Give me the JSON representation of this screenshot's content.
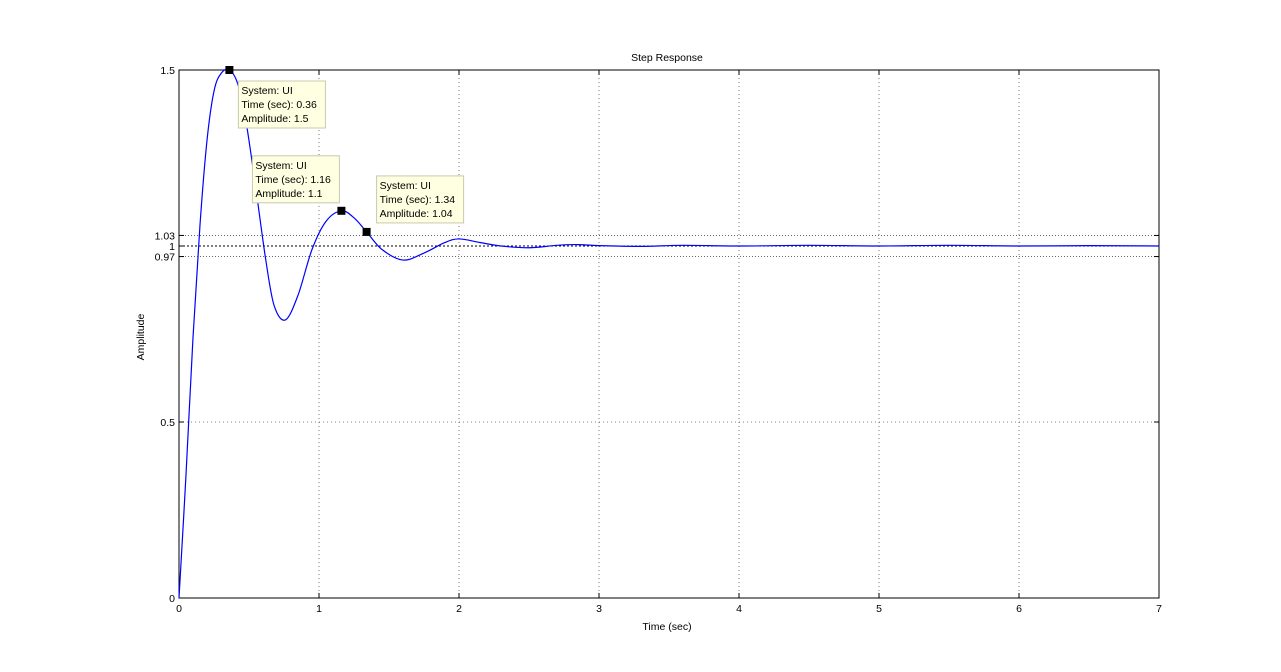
{
  "chart_data": {
    "type": "line",
    "title": "Step Response",
    "xlabel": "Time (sec)",
    "ylabel": "Amplitude",
    "xlim": [
      0,
      7
    ],
    "ylim": [
      0,
      1.5
    ],
    "xticks": [
      "0",
      "1",
      "2",
      "3",
      "4",
      "5",
      "6",
      "7"
    ],
    "yticks": [
      "0",
      "0.5",
      "0.97",
      "1",
      "1.03",
      "1.5"
    ],
    "grid": true,
    "line_color": "#0000ff",
    "settling_bounds": [
      0.97,
      1.03
    ],
    "steady_state": 1,
    "series": [
      {
        "x": [
          0,
          0.05,
          0.1,
          0.15,
          0.2,
          0.25,
          0.3,
          0.36,
          0.42,
          0.48,
          0.55,
          0.62,
          0.68,
          0.76,
          0.85,
          0.95,
          1.05,
          1.16,
          1.25,
          1.34,
          1.45,
          1.6,
          1.75,
          1.9,
          2.0,
          2.15,
          2.3,
          2.5,
          2.7,
          2.85,
          3.0,
          3.3,
          3.6,
          4.0,
          4.5,
          5.0,
          5.5,
          6.0,
          6.5,
          7.0
        ],
        "y": [
          0,
          0.35,
          0.74,
          1.06,
          1.3,
          1.44,
          1.49,
          1.5,
          1.46,
          1.35,
          1.16,
          0.96,
          0.83,
          0.79,
          0.86,
          0.99,
          1.07,
          1.1,
          1.08,
          1.04,
          0.99,
          0.96,
          0.98,
          1.01,
          1.02,
          1.01,
          1.0,
          0.995,
          1.002,
          1.004,
          1.001,
          0.999,
          1.002,
          1.0,
          1.002,
          1.0,
          1.002,
          1.0,
          1.001,
          1.0
        ]
      }
    ],
    "datatips": [
      {
        "system": "System: UI",
        "time": "Time (sec): 0.36",
        "amplitude": "Amplitude: 1.5",
        "x": 0.36,
        "y": 1.5
      },
      {
        "system": "System: UI",
        "time": "Time (sec): 1.16",
        "amplitude": "Amplitude: 1.1",
        "x": 1.16,
        "y": 1.1
      },
      {
        "system": "System: UI",
        "time": "Time (sec): 1.34",
        "amplitude": "Amplitude: 1.04",
        "x": 1.34,
        "y": 1.04
      }
    ]
  }
}
